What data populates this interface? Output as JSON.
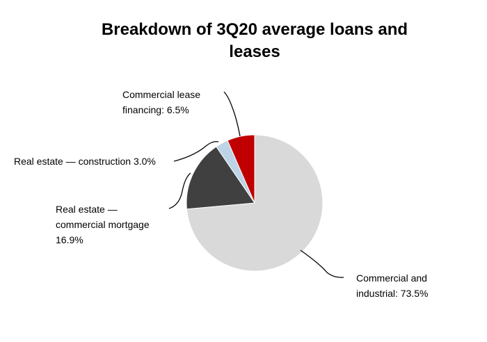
{
  "chart_data": {
    "type": "pie",
    "title": "Breakdown of 3Q20 average loans and leases",
    "values": [
      73.5,
      16.9,
      3.0,
      6.5
    ],
    "value_labels": [
      "Commercial and industrial: 73.5%",
      "Real estate — commercial mortgage 16.9%",
      "Real estate — construction 3.0%",
      "Commercial lease financing: 6.5%"
    ],
    "colors": [
      "#d9d9d9",
      "#404040",
      "#bdd3e6",
      "#c00000"
    ]
  }
}
